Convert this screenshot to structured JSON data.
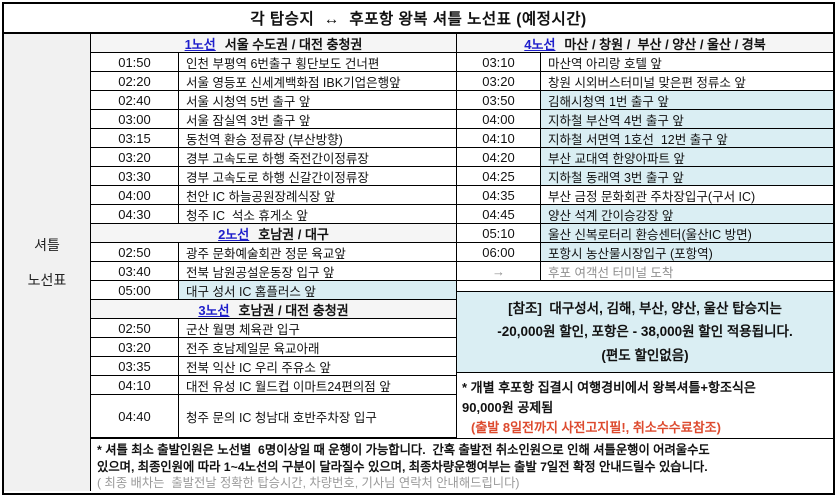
{
  "title": "각 탑승지  ↔  후포항 왕복 셔틀 노선표 (예정시간)",
  "sidebar": {
    "line1": "셔틀",
    "line2": "노선표"
  },
  "colors": {
    "highlight": "#daeef3",
    "route_link_blue": "#1e1ecb",
    "warning_red": "#dd4a2e",
    "muted_gray": "#8f8f8f",
    "sidebar_gray": "#f1f1f1"
  },
  "left_table": {
    "sections": [
      {
        "route": "1노선",
        "region": "서울 수도권 / 대전 충청권",
        "rows": [
          {
            "time": "01:50",
            "place": "인천 부평역 6번출구 횡단보도 건너편"
          },
          {
            "time": "02:20",
            "place": "서울 영등포 신세계백화점 IBK기업은행앞"
          },
          {
            "time": "02:40",
            "place": "서울 시청역 5번 출구 앞"
          },
          {
            "time": "03:00",
            "place": "서울 잠실역 3번 출구 앞"
          },
          {
            "time": "03:15",
            "place": "동천역 환승 정류장 (부산방향)"
          },
          {
            "time": "03:20",
            "place": "경부 고속도로 하행 죽전간이정류장"
          },
          {
            "time": "03:30",
            "place": "경부 고속도로 하행 신갈간이정류장"
          },
          {
            "time": "04:00",
            "place": "천안 IC 하늘공원장례식장 앞"
          },
          {
            "time": "04:30",
            "place": "청주 IC  석소 휴게소 앞"
          }
        ]
      },
      {
        "route": "2노선",
        "region": "호남권 / 대구",
        "rows": [
          {
            "time": "02:50",
            "place": "광주 문화예술회관 정문 육교앞"
          },
          {
            "time": "03:40",
            "place": "전북 남원공설운동장 입구 앞"
          },
          {
            "time": "05:00",
            "place": "대구 성서 IC 홈플러스 앞",
            "highlight": true
          }
        ]
      },
      {
        "route": "3노선",
        "region": "호남권 / 대전 충청권",
        "rows": [
          {
            "time": "02:50",
            "place": "군산 월명 체육관 입구"
          },
          {
            "time": "03:20",
            "place": "전주 호남제일문 육교아래"
          },
          {
            "time": "03:35",
            "place": "전북 익산 IC 우리 주유소 앞"
          },
          {
            "time": "04:10",
            "place": "대전 유성 IC 월드컵 이마트24편의점 앞"
          },
          {
            "time": "04:40",
            "place": "청주 문의 IC 청남대 호반주차장 입구",
            "tall": true
          }
        ]
      }
    ]
  },
  "right_table": {
    "route": "4노선",
    "region": "마산 / 창원 /  부산 / 양산 / 울산 / 경북",
    "rows": [
      {
        "time": "03:10",
        "place": "마산역 아리랑 호텔 앞"
      },
      {
        "time": "03:20",
        "place": "창원 시외버스터미널 맞은편 정류소 앞"
      },
      {
        "time": "03:50",
        "place": "김해시청역 1번 출구 앞",
        "highlight": true
      },
      {
        "time": "04:00",
        "place": "지하철 부산역 4번 출구 앞",
        "highlight": true
      },
      {
        "time": "04:10",
        "place": "지하철 서면역 1호선  12번 출구 앞",
        "highlight": true
      },
      {
        "time": "04:20",
        "place": "부산 교대역 한양아파트 앞",
        "highlight": true
      },
      {
        "time": "04:25",
        "place": "지하철 동래역 3번 출구 앞",
        "highlight": true
      },
      {
        "time": "04:35",
        "place": "부산 금정 문화회관 주차장입구(구서 IC)"
      },
      {
        "time": "04:45",
        "place": "양산 석계 간이승강장 앞",
        "highlight": true
      },
      {
        "time": "05:10",
        "place": "울산 신복로터리 환승센터(울산IC 방면)",
        "highlight": true
      },
      {
        "time": "06:00",
        "place": "포항시 농산물시장입구 (포항역)",
        "highlight": true
      },
      {
        "time": "→",
        "place": "후포 여객선 터미널 도착",
        "muted": true
      }
    ]
  },
  "reference_box": {
    "line1": "[참조]  대구성서, 김해, 부산, 양산, 울산 탑승지는",
    "line2": "-20,000원 할인, 포항은 - 38,000원 할인 적용됩니다.",
    "line3": "(편도 할인없음)"
  },
  "note_box": {
    "line1": "* 개별 후포항 집결시 여행경비에서 왕복셔틀+항조식은",
    "line2": "90,000원 공제됨",
    "red_line": "(출발 8일전까지 사전고지필!, 취소수수료참조)"
  },
  "footer": {
    "line1": "* 셔틀 최소 출발인원은 노선별  6명이상일 때 운행이 가능합니다.  간혹 출발전 취소인원으로 인해 셔틀운행이 어려울수도",
    "line2": "있으며, 최종인원에 따라 1~4노선의 구분이 달라질수 있으며, 최종차량운행여부는 출발 7일전 확정 안내드릴수 있습니다.",
    "line3": "( 최종 배차는  출발전날 정확한 탑승시간, 차량번호, 기사님 연락처 안내해드립니다)"
  }
}
